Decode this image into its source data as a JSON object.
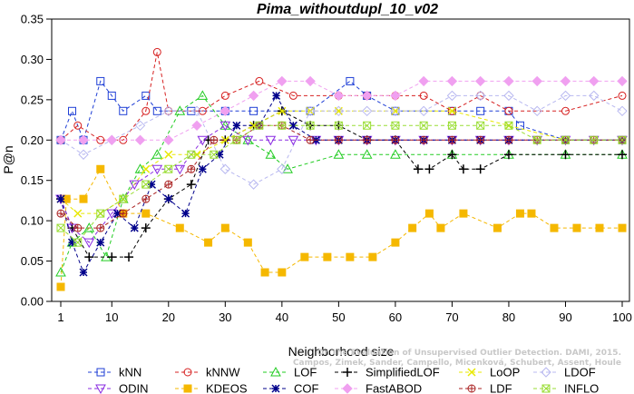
{
  "chart_data": {
    "type": "line",
    "title": "Pima_withoutdupl_10_v02",
    "xlabel": "Neighborhood size",
    "ylabel": "P@n",
    "xlim": [
      1,
      100
    ],
    "ylim": [
      0,
      0.35
    ],
    "xticks": [
      1,
      10,
      20,
      30,
      40,
      50,
      60,
      70,
      80,
      90,
      100
    ],
    "yticks": [
      "0.00",
      "0.05",
      "0.10",
      "0.15",
      "0.20",
      "0.25",
      "0.30",
      "0.35"
    ],
    "grid": false,
    "legend_position": "bottom",
    "watermark": "Campos, Zimek, Sander, Campello, Micenková, Schubert, Assent, Houle",
    "watermark_line1": "On the Evaluation of Unsupervised Outlier Detection. DAMI, 2015.",
    "series": [
      {
        "name": "kNN",
        "color": "#1f3fd6",
        "marker": "square",
        "x": [
          1,
          3,
          5,
          8,
          10,
          12,
          16,
          18,
          24,
          30,
          35,
          45,
          52,
          55,
          60,
          70,
          75,
          80,
          82,
          90,
          100
        ],
        "y": [
          0.2,
          0.236,
          0.2,
          0.273,
          0.255,
          0.236,
          0.255,
          0.236,
          0.236,
          0.236,
          0.236,
          0.236,
          0.273,
          0.255,
          0.236,
          0.236,
          0.236,
          0.236,
          0.218,
          0.2,
          0.2
        ]
      },
      {
        "name": "kNNW",
        "color": "#d62020",
        "marker": "circle",
        "x": [
          1,
          4,
          8,
          12,
          16,
          18,
          20,
          26,
          30,
          36,
          42,
          50,
          55,
          60,
          65,
          70,
          75,
          80,
          90,
          100
        ],
        "y": [
          0.2,
          0.218,
          0.2,
          0.2,
          0.236,
          0.309,
          0.236,
          0.236,
          0.255,
          0.273,
          0.255,
          0.255,
          0.255,
          0.255,
          0.255,
          0.236,
          0.255,
          0.236,
          0.236,
          0.255
        ]
      },
      {
        "name": "LOF",
        "color": "#22cc22",
        "marker": "triangle",
        "x": [
          1,
          3,
          6,
          9,
          12,
          15,
          18,
          22,
          26,
          30,
          34,
          38,
          41,
          50,
          55,
          60,
          70,
          80,
          90,
          100
        ],
        "y": [
          0.036,
          0.073,
          0.091,
          0.055,
          0.127,
          0.164,
          0.182,
          0.236,
          0.255,
          0.218,
          0.2,
          0.182,
          0.164,
          0.182,
          0.182,
          0.182,
          0.182,
          0.182,
          0.182,
          0.182
        ]
      },
      {
        "name": "SimplifiedLOF",
        "color": "#000000",
        "marker": "plus",
        "x": [
          1,
          3,
          6,
          10,
          13,
          16,
          20,
          24,
          27,
          30,
          35,
          40,
          45,
          50,
          55,
          60,
          64,
          66,
          70,
          72,
          75,
          80,
          90,
          100
        ],
        "y": [
          0.127,
          0.091,
          0.055,
          0.055,
          0.055,
          0.091,
          0.127,
          0.145,
          0.2,
          0.2,
          0.218,
          0.236,
          0.218,
          0.218,
          0.2,
          0.2,
          0.164,
          0.164,
          0.182,
          0.164,
          0.164,
          0.182,
          0.182,
          0.182
        ]
      },
      {
        "name": "LoOP",
        "color": "#e8e800",
        "marker": "x",
        "x": [
          1,
          4,
          8,
          12,
          16,
          20,
          25,
          30,
          35,
          40,
          45,
          50,
          60,
          70,
          80,
          90,
          100
        ],
        "y": [
          0.127,
          0.109,
          0.109,
          0.127,
          0.164,
          0.182,
          0.182,
          0.2,
          0.218,
          0.236,
          0.236,
          0.236,
          0.236,
          0.236,
          0.218,
          0.2,
          0.2
        ]
      },
      {
        "name": "LDOF",
        "color": "#b8b8f0",
        "marker": "diamond",
        "x": [
          1,
          5,
          10,
          15,
          20,
          25,
          30,
          35,
          40,
          45,
          50,
          55,
          60,
          65,
          70,
          75,
          80,
          85,
          90,
          95,
          100
        ],
        "y": [
          0.2,
          0.182,
          0.2,
          0.218,
          0.236,
          0.236,
          0.164,
          0.145,
          0.164,
          0.236,
          0.236,
          0.236,
          0.236,
          0.236,
          0.255,
          0.255,
          0.255,
          0.236,
          0.255,
          0.255,
          0.236
        ]
      },
      {
        "name": "ODIN",
        "color": "#8a2be2",
        "marker": "triangle-down",
        "x": [
          1,
          3,
          6,
          10,
          14,
          18,
          22,
          26,
          30,
          34,
          38,
          42,
          46,
          50,
          55,
          60,
          65,
          70,
          75,
          80,
          85,
          90,
          95,
          100
        ],
        "y": [
          0.127,
          0.091,
          0.073,
          0.109,
          0.145,
          0.164,
          0.164,
          0.2,
          0.218,
          0.2,
          0.2,
          0.2,
          0.2,
          0.2,
          0.2,
          0.2,
          0.2,
          0.2,
          0.2,
          0.2,
          0.2,
          0.2,
          0.2,
          0.2
        ]
      },
      {
        "name": "KDEOS",
        "color": "#f5b800",
        "marker": "square-filled",
        "x": [
          1,
          2,
          5,
          8,
          12,
          16,
          22,
          27,
          30,
          34,
          37,
          40,
          44,
          48,
          52,
          56,
          60,
          63,
          66,
          68,
          72,
          78,
          82,
          84,
          88,
          92,
          96,
          100
        ],
        "y": [
          0.018,
          0.127,
          0.127,
          0.164,
          0.109,
          0.109,
          0.091,
          0.073,
          0.091,
          0.073,
          0.036,
          0.036,
          0.055,
          0.055,
          0.055,
          0.055,
          0.073,
          0.091,
          0.109,
          0.091,
          0.109,
          0.091,
          0.109,
          0.109,
          0.091,
          0.091,
          0.091,
          0.091
        ]
      },
      {
        "name": "COF",
        "color": "#00008b",
        "marker": "asterisk",
        "x": [
          1,
          3,
          5,
          8,
          11,
          14,
          17,
          20,
          23,
          26,
          29,
          32,
          36,
          39,
          42,
          46,
          50,
          55,
          60,
          65,
          70,
          75,
          80,
          90,
          100
        ],
        "y": [
          0.127,
          0.073,
          0.036,
          0.073,
          0.109,
          0.091,
          0.145,
          0.127,
          0.109,
          0.164,
          0.182,
          0.218,
          0.218,
          0.255,
          0.218,
          0.2,
          0.2,
          0.2,
          0.2,
          0.2,
          0.2,
          0.2,
          0.2,
          0.2,
          0.2
        ]
      },
      {
        "name": "FastABOD",
        "color": "#f0a0f0",
        "marker": "diamond-filled",
        "x": [
          1,
          5,
          10,
          15,
          20,
          25,
          30,
          35,
          40,
          45,
          50,
          55,
          60,
          65,
          70,
          75,
          80,
          85,
          90,
          95,
          100
        ],
        "y": [
          0.2,
          0.2,
          0.2,
          0.2,
          0.2,
          0.218,
          0.236,
          0.255,
          0.273,
          0.273,
          0.255,
          0.255,
          0.255,
          0.273,
          0.273,
          0.273,
          0.273,
          0.273,
          0.273,
          0.273,
          0.273
        ]
      },
      {
        "name": "LDF",
        "color": "#aa2222",
        "marker": "circle-plus",
        "x": [
          1,
          4,
          8,
          12,
          16,
          20,
          24,
          28,
          32,
          36,
          40,
          45,
          50,
          55,
          60,
          65,
          70,
          75,
          80,
          85,
          90,
          95,
          100
        ],
        "y": [
          0.109,
          0.091,
          0.091,
          0.109,
          0.127,
          0.145,
          0.164,
          0.2,
          0.2,
          0.218,
          0.218,
          0.2,
          0.2,
          0.2,
          0.2,
          0.2,
          0.2,
          0.2,
          0.2,
          0.2,
          0.2,
          0.2,
          0.2
        ]
      },
      {
        "name": "INFLO",
        "color": "#99dd33",
        "marker": "square-x",
        "x": [
          1,
          4,
          8,
          12,
          16,
          20,
          24,
          28,
          32,
          36,
          40,
          45,
          50,
          55,
          60,
          65,
          70,
          75,
          80,
          85,
          90,
          95,
          100
        ],
        "y": [
          0.091,
          0.073,
          0.109,
          0.127,
          0.145,
          0.164,
          0.182,
          0.182,
          0.2,
          0.218,
          0.218,
          0.218,
          0.218,
          0.218,
          0.218,
          0.218,
          0.218,
          0.218,
          0.218,
          0.2,
          0.2,
          0.2,
          0.2
        ]
      }
    ]
  }
}
